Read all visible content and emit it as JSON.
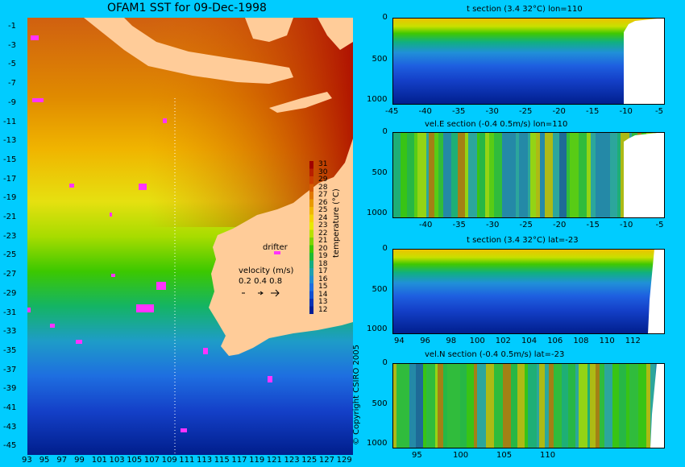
{
  "map": {
    "title": "OFAM1 SST for 09-Dec-1998",
    "lat_ticks": [
      "-1",
      "-3",
      "-5",
      "-7",
      "-9",
      "-11",
      "-13",
      "-15",
      "-17",
      "-19",
      "-21",
      "-23",
      "-25",
      "-27",
      "-29",
      "-31",
      "-33",
      "-35",
      "-37",
      "-39",
      "-41",
      "-43",
      "-45"
    ],
    "lon_ticks": [
      "93",
      "95",
      "97",
      "99",
      "101",
      "103",
      "105",
      "107",
      "109",
      "111",
      "113",
      "115",
      "117",
      "119",
      "121",
      "123",
      "125",
      "127",
      "129"
    ],
    "colorbar": {
      "label": "temperature (°C)",
      "ticks": [
        "31",
        "30",
        "29",
        "28",
        "27",
        "26",
        "25",
        "24",
        "23",
        "22",
        "21",
        "20",
        "19",
        "18",
        "17",
        "16",
        "15",
        "14",
        "13",
        "12"
      ],
      "colors": [
        "#a00000",
        "#b81e00",
        "#cc3c00",
        "#d65a00",
        "#e07800",
        "#e89a00",
        "#f0b800",
        "#f4d400",
        "#e8e800",
        "#b8e000",
        "#7ed400",
        "#3cc800",
        "#1eba32",
        "#14ac82",
        "#1ea0b0",
        "#1e8cd2",
        "#1e6ee0",
        "#1450d2",
        "#0a32b4",
        "#001e96"
      ]
    },
    "drifter_label": "drifter",
    "velocity_label": "velocity (m/s)",
    "velocity_scale": "0.2 0.4 0.8",
    "copyright": "© Copyright CSIRO 2005"
  },
  "panels": [
    {
      "title": "t section (3.4      32°C) lon=110",
      "y_ticks": [
        "0",
        "500",
        "1000"
      ],
      "x_ticks": [
        "-45",
        "-40",
        "-35",
        "-30",
        "-25",
        "-20",
        "-15",
        "-10",
        "-5"
      ]
    },
    {
      "title": "vel.E section (-0.4      0.5m/s) lon=110",
      "y_ticks": [
        "0",
        "500",
        "1000"
      ],
      "x_ticks": [
        "-40",
        "-35",
        "-30",
        "-25",
        "-20",
        "-15",
        "-10",
        "-5"
      ]
    },
    {
      "title": "t section (3.4      32°C) lat=-23",
      "y_ticks": [
        "0",
        "500",
        "1000"
      ],
      "x_ticks": [
        "94",
        "96",
        "98",
        "100",
        "102",
        "104",
        "106",
        "108",
        "110",
        "112"
      ]
    },
    {
      "title": "vel.N section (-0.4      0.5m/s) lat=-23",
      "y_ticks": [
        "0",
        "500",
        "1000"
      ],
      "x_ticks": [
        "95",
        "100",
        "105",
        "110"
      ]
    }
  ],
  "chart_data": [
    {
      "type": "heatmap",
      "title": "OFAM1 SST for 09-Dec-1998",
      "xlabel": "",
      "ylabel": "",
      "xlim": [
        93,
        130
      ],
      "ylim": [
        -45,
        0
      ],
      "colorbar": {
        "label": "temperature (°C)",
        "range": [
          12,
          31
        ]
      },
      "legend": [
        "drifter",
        "velocity (m/s)"
      ]
    },
    {
      "type": "heatmap",
      "title": "t section (3.4      32°C) lon=110",
      "xlim": [
        -45,
        -2
      ],
      "ylim": [
        1050,
        0
      ]
    },
    {
      "type": "heatmap",
      "title": "vel.E section (-0.4      0.5m/s) lon=110",
      "xlim": [
        -45,
        -2
      ],
      "ylim": [
        1050,
        0
      ]
    },
    {
      "type": "heatmap",
      "title": "t section (3.4      32°C) lat=-23",
      "xlim": [
        93,
        114
      ],
      "ylim": [
        1050,
        0
      ]
    },
    {
      "type": "heatmap",
      "title": "vel.N section (-0.4      0.5m/s) lat=-23",
      "xlim": [
        93,
        114
      ],
      "ylim": [
        1050,
        0
      ]
    }
  ]
}
